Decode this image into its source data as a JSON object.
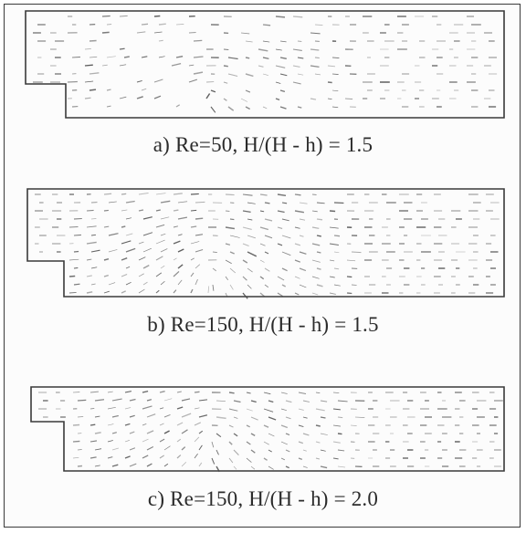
{
  "figure": {
    "panels": [
      {
        "caption": "a) Re=50, H/(H - h) = 1.5"
      },
      {
        "caption": "b) Re=150, H/(H - h) = 1.5"
      },
      {
        "caption": "c) Re=150, H/(H - h) = 2.0"
      }
    ]
  },
  "style": {
    "outline_color": "#3a3a3a",
    "vector_color": "#4a4a4a",
    "caption_color": "#2b2b2b"
  }
}
